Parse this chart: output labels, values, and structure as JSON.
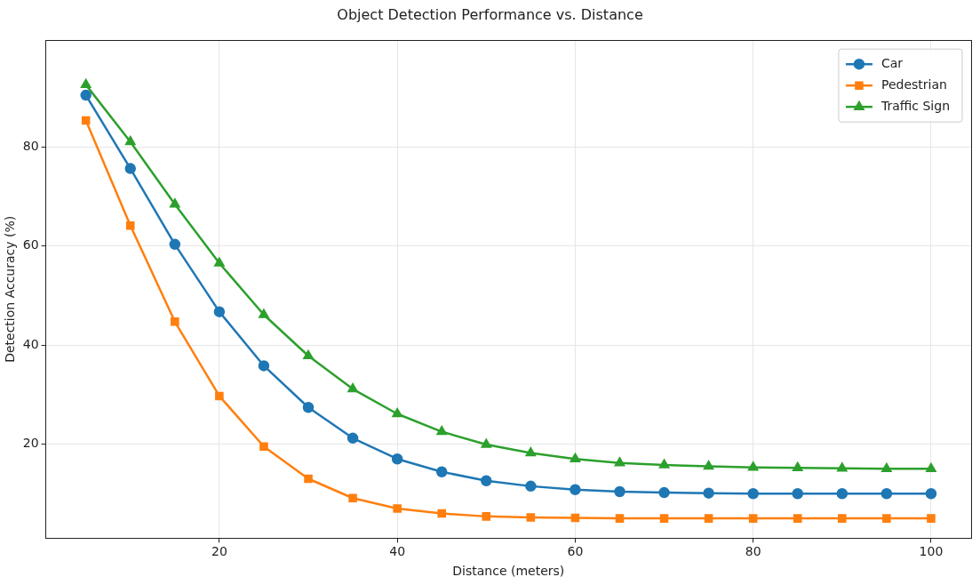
{
  "chart_data": {
    "type": "line",
    "title": "Object Detection Performance vs. Distance",
    "xlabel": "Distance (meters)",
    "ylabel": "Detection Accuracy (%)",
    "x": [
      5,
      10,
      15,
      20,
      25,
      30,
      35,
      40,
      45,
      50,
      55,
      60,
      65,
      70,
      75,
      80,
      85,
      90,
      95,
      100
    ],
    "series": [
      {
        "name": "Car",
        "color": "#1f77b4",
        "marker": "circle",
        "values": [
          90.4,
          75.6,
          60.3,
          46.7,
          35.8,
          27.4,
          21.2,
          17.0,
          14.4,
          12.6,
          11.5,
          10.8,
          10.4,
          10.2,
          10.1,
          10.0,
          10.0,
          10.0,
          10.0,
          10.0
        ]
      },
      {
        "name": "Pedestrian",
        "color": "#ff7f0e",
        "marker": "square",
        "values": [
          85.3,
          64.1,
          44.7,
          29.7,
          19.5,
          13.0,
          9.1,
          7.0,
          6.0,
          5.4,
          5.2,
          5.1,
          5.0,
          5.0,
          5.0,
          5.0,
          5.0,
          5.0,
          5.0,
          5.0
        ]
      },
      {
        "name": "Traffic Sign",
        "color": "#2ca02c",
        "marker": "triangle",
        "values": [
          92.5,
          81.0,
          68.4,
          56.5,
          46.1,
          37.8,
          31.1,
          26.1,
          22.5,
          19.9,
          18.2,
          17.0,
          16.2,
          15.8,
          15.5,
          15.3,
          15.2,
          15.1,
          15.0,
          15.0
        ]
      }
    ],
    "xlim": [
      0.5,
      104.5
    ],
    "ylim": [
      1,
      101.5
    ],
    "xticks": [
      20,
      40,
      60,
      80,
      100
    ],
    "yticks": [
      20,
      40,
      60,
      80
    ],
    "grid": true,
    "legend": "top right",
    "line_style": "solid"
  }
}
